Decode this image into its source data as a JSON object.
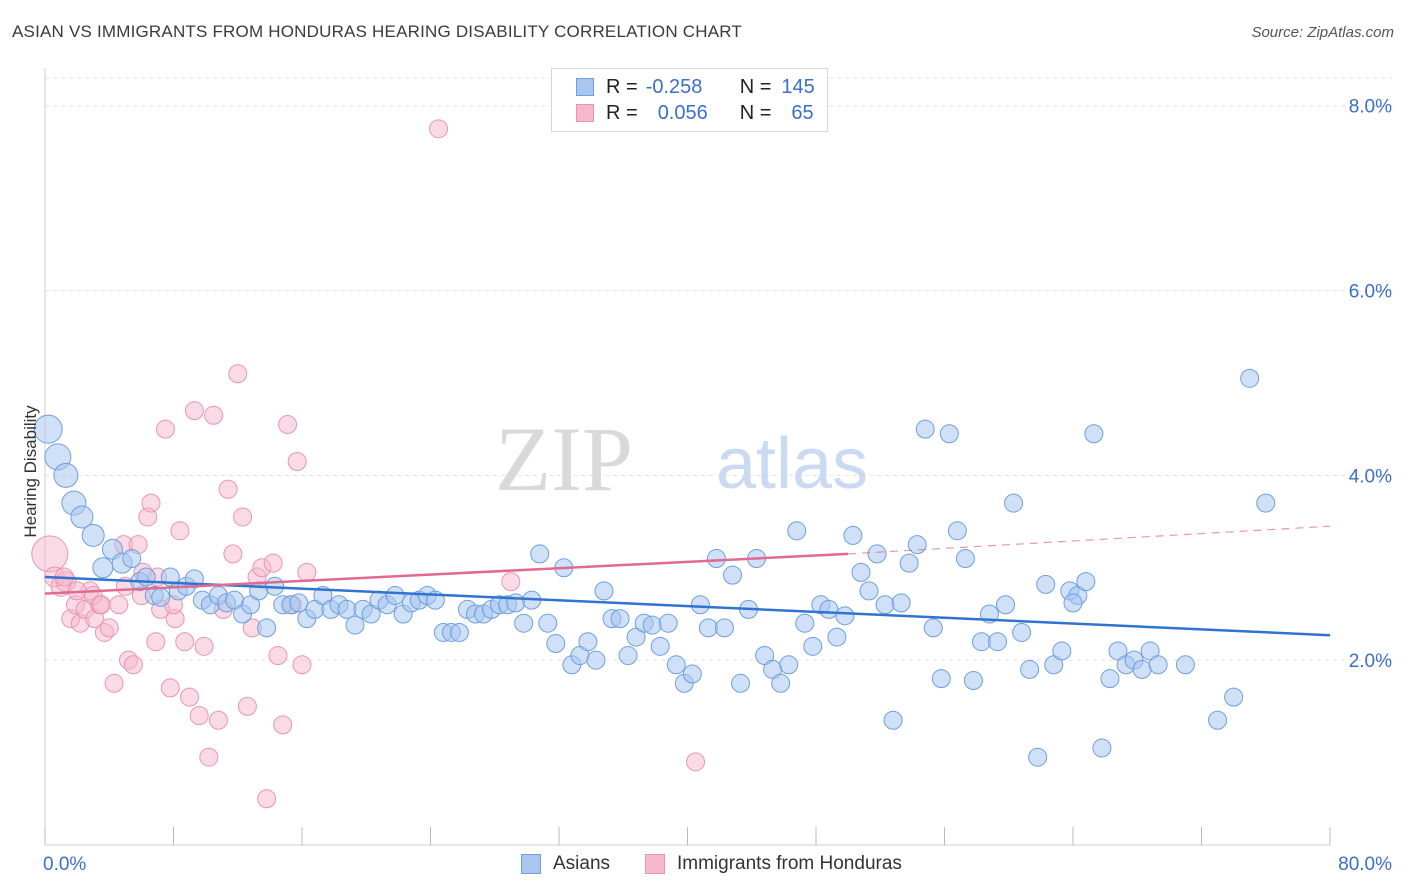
{
  "header": {
    "title": "ASIAN VS IMMIGRANTS FROM HONDURAS HEARING DISABILITY CORRELATION CHART",
    "source": "Source: ZipAtlas.com"
  },
  "legend": {
    "rows": [
      {
        "r_label": "R =",
        "r_value": "-0.258",
        "n_label": "N =",
        "n_value": "145"
      },
      {
        "r_label": "R =",
        "r_value": "0.056",
        "n_label": "N =",
        "n_value": "65"
      }
    ]
  },
  "bottom_legend": {
    "asians": "Asians",
    "honduras": "Immigrants from Honduras"
  },
  "watermark": {
    "zip": "ZIP",
    "atlas": "atlas"
  },
  "colors": {
    "asians_fill": "#a8c6f0",
    "asians_stroke": "#6e9fe0",
    "asians_line": "#2f74d0",
    "honduras_fill": "#f6b8cb",
    "honduras_stroke": "#e995b0",
    "honduras_line": "#e06a93",
    "axis_text": "#3b6fc9",
    "grid": "#e3e3e3"
  },
  "chart_data": {
    "type": "scatter",
    "title": "ASIAN VS IMMIGRANTS FROM HONDURAS HEARING DISABILITY CORRELATION CHART",
    "xlabel": "",
    "ylabel": "Hearing Disability",
    "xlim": [
      0,
      80
    ],
    "ylim": [
      0,
      8.3
    ],
    "x_tick_labels": [
      "0.0%",
      "80.0%"
    ],
    "y_ticks": [
      2,
      4,
      6,
      8
    ],
    "y_tick_labels": [
      "2.0%",
      "4.0%",
      "6.0%",
      "8.0%"
    ],
    "grid": true,
    "legend_position": "top-center",
    "series": [
      {
        "name": "Asians",
        "r": -0.258,
        "n": 145,
        "trend": {
          "x": [
            0,
            80
          ],
          "y": [
            2.9,
            2.27
          ]
        },
        "points": [
          [
            0.2,
            4.5,
            14
          ],
          [
            0.8,
            4.2,
            13
          ],
          [
            1.3,
            4.0,
            12
          ],
          [
            1.8,
            3.7,
            12
          ],
          [
            2.3,
            3.55,
            11
          ],
          [
            3.0,
            3.35,
            11
          ],
          [
            3.6,
            3.0,
            10
          ],
          [
            4.2,
            3.2,
            10
          ],
          [
            4.8,
            3.05,
            10
          ],
          [
            5.4,
            3.1,
            9
          ],
          [
            5.9,
            2.85,
            9
          ],
          [
            6.3,
            2.9,
            9
          ],
          [
            6.8,
            2.7,
            9
          ],
          [
            7.2,
            2.68,
            9
          ],
          [
            7.8,
            2.9,
            9
          ],
          [
            8.3,
            2.75,
            9
          ],
          [
            8.8,
            2.8,
            9
          ],
          [
            9.3,
            2.88,
            9
          ],
          [
            9.8,
            2.65,
            9
          ],
          [
            10.3,
            2.6,
            9
          ],
          [
            10.8,
            2.7,
            9
          ],
          [
            11.3,
            2.62,
            9
          ],
          [
            11.8,
            2.65,
            9
          ],
          [
            12.3,
            2.5,
            9
          ],
          [
            12.8,
            2.6,
            9
          ],
          [
            13.3,
            2.75,
            9
          ],
          [
            13.8,
            2.35,
            9
          ],
          [
            14.3,
            2.8,
            9
          ],
          [
            14.8,
            2.6,
            9
          ],
          [
            15.3,
            2.6,
            9
          ],
          [
            15.8,
            2.62,
            9
          ],
          [
            16.3,
            2.45,
            9
          ],
          [
            16.8,
            2.55,
            9
          ],
          [
            17.3,
            2.7,
            9
          ],
          [
            17.8,
            2.55,
            9
          ],
          [
            18.3,
            2.6,
            9
          ],
          [
            18.8,
            2.55,
            9
          ],
          [
            19.3,
            2.38,
            9
          ],
          [
            19.8,
            2.55,
            9
          ],
          [
            20.3,
            2.5,
            9
          ],
          [
            20.8,
            2.65,
            9
          ],
          [
            21.3,
            2.6,
            9
          ],
          [
            21.8,
            2.7,
            9
          ],
          [
            22.3,
            2.5,
            9
          ],
          [
            22.8,
            2.62,
            9
          ],
          [
            23.3,
            2.65,
            9
          ],
          [
            23.8,
            2.7,
            9
          ],
          [
            24.3,
            2.65,
            9
          ],
          [
            24.8,
            2.3,
            9
          ],
          [
            25.3,
            2.3,
            9
          ],
          [
            25.8,
            2.3,
            9
          ],
          [
            26.3,
            2.55,
            9
          ],
          [
            26.8,
            2.5,
            9
          ],
          [
            27.3,
            2.5,
            9
          ],
          [
            27.8,
            2.55,
            9
          ],
          [
            28.3,
            2.6,
            9
          ],
          [
            28.8,
            2.6,
            9
          ],
          [
            29.3,
            2.62,
            9
          ],
          [
            29.8,
            2.4,
            9
          ],
          [
            30.3,
            2.65,
            9
          ],
          [
            30.8,
            3.15,
            9
          ],
          [
            31.3,
            2.4,
            9
          ],
          [
            31.8,
            2.18,
            9
          ],
          [
            32.3,
            3.0,
            9
          ],
          [
            32.8,
            1.95,
            9
          ],
          [
            33.3,
            2.05,
            9
          ],
          [
            33.8,
            2.2,
            9
          ],
          [
            34.3,
            2.0,
            9
          ],
          [
            34.8,
            2.75,
            9
          ],
          [
            35.3,
            2.45,
            9
          ],
          [
            35.8,
            2.45,
            9
          ],
          [
            36.3,
            2.05,
            9
          ],
          [
            36.8,
            2.25,
            9
          ],
          [
            37.3,
            2.4,
            9
          ],
          [
            37.8,
            2.38,
            9
          ],
          [
            38.3,
            2.15,
            9
          ],
          [
            38.8,
            2.4,
            9
          ],
          [
            39.3,
            1.95,
            9
          ],
          [
            39.8,
            1.75,
            9
          ],
          [
            40.3,
            1.85,
            9
          ],
          [
            40.8,
            2.6,
            9
          ],
          [
            41.3,
            2.35,
            9
          ],
          [
            41.8,
            3.1,
            9
          ],
          [
            42.3,
            2.35,
            9
          ],
          [
            42.8,
            2.92,
            9
          ],
          [
            43.3,
            1.75,
            9
          ],
          [
            43.8,
            2.55,
            9
          ],
          [
            44.3,
            3.1,
            9
          ],
          [
            44.8,
            2.05,
            9
          ],
          [
            45.3,
            1.9,
            9
          ],
          [
            45.8,
            1.75,
            9
          ],
          [
            46.3,
            1.95,
            9
          ],
          [
            46.8,
            3.4,
            9
          ],
          [
            47.3,
            2.4,
            9
          ],
          [
            47.8,
            2.15,
            9
          ],
          [
            48.3,
            2.6,
            9
          ],
          [
            48.8,
            2.55,
            9
          ],
          [
            49.3,
            2.25,
            9
          ],
          [
            49.8,
            2.48,
            9
          ],
          [
            50.3,
            3.35,
            9
          ],
          [
            50.8,
            2.95,
            9
          ],
          [
            51.3,
            2.75,
            9
          ],
          [
            51.8,
            3.15,
            9
          ],
          [
            52.3,
            2.6,
            9
          ],
          [
            52.8,
            1.35,
            9
          ],
          [
            53.3,
            2.62,
            9
          ],
          [
            53.8,
            3.05,
            9
          ],
          [
            54.3,
            3.25,
            9
          ],
          [
            54.8,
            4.5,
            9
          ],
          [
            55.3,
            2.35,
            9
          ],
          [
            55.8,
            1.8,
            9
          ],
          [
            56.3,
            4.45,
            9
          ],
          [
            56.8,
            3.4,
            9
          ],
          [
            57.3,
            3.1,
            9
          ],
          [
            57.8,
            1.78,
            9
          ],
          [
            58.3,
            2.2,
            9
          ],
          [
            58.8,
            2.5,
            9
          ],
          [
            59.3,
            2.2,
            9
          ],
          [
            59.8,
            2.6,
            9
          ],
          [
            60.3,
            3.7,
            9
          ],
          [
            60.8,
            2.3,
            9
          ],
          [
            61.3,
            1.9,
            9
          ],
          [
            61.8,
            0.95,
            9
          ],
          [
            62.3,
            2.82,
            9
          ],
          [
            62.8,
            1.95,
            9
          ],
          [
            63.3,
            2.1,
            9
          ],
          [
            63.8,
            2.75,
            9
          ],
          [
            64.3,
            2.7,
            9
          ],
          [
            64.8,
            2.85,
            9
          ],
          [
            65.3,
            4.45,
            9
          ],
          [
            65.8,
            1.05,
            9
          ],
          [
            66.3,
            1.8,
            9
          ],
          [
            66.8,
            2.1,
            9
          ],
          [
            67.3,
            1.95,
            9
          ],
          [
            67.8,
            2.0,
            9
          ],
          [
            68.3,
            1.9,
            9
          ],
          [
            68.8,
            2.1,
            9
          ],
          [
            69.3,
            1.95,
            9
          ],
          [
            71.0,
            1.95,
            9
          ],
          [
            73.0,
            1.35,
            9
          ],
          [
            74.0,
            1.6,
            9
          ],
          [
            75.0,
            5.05,
            9
          ],
          [
            76.0,
            3.7,
            9
          ],
          [
            64.0,
            2.62,
            9
          ]
        ]
      },
      {
        "name": "Immigrants from Honduras",
        "r": 0.056,
        "n": 65,
        "trend": {
          "x": [
            0,
            50
          ],
          "y": [
            2.72,
            3.15
          ]
        },
        "trend_dashed": {
          "x": [
            50,
            80
          ],
          "y": [
            3.15,
            3.45
          ]
        },
        "points": [
          [
            0.3,
            3.15,
            18
          ],
          [
            0.6,
            2.9,
            10
          ],
          [
            1.0,
            2.8,
            10
          ],
          [
            1.3,
            2.85,
            10
          ],
          [
            1.6,
            2.45,
            9
          ],
          [
            1.9,
            2.6,
            9
          ],
          [
            2.2,
            2.4,
            9
          ],
          [
            2.5,
            2.55,
            9
          ],
          [
            2.8,
            2.75,
            9
          ],
          [
            3.1,
            2.45,
            9
          ],
          [
            3.4,
            2.6,
            9
          ],
          [
            3.7,
            2.3,
            9
          ],
          [
            4.0,
            2.35,
            9
          ],
          [
            4.3,
            1.75,
            9
          ],
          [
            4.6,
            2.6,
            9
          ],
          [
            4.9,
            3.25,
            9
          ],
          [
            5.2,
            2.0,
            9
          ],
          [
            5.5,
            1.95,
            9
          ],
          [
            5.8,
            3.25,
            9
          ],
          [
            6.1,
            2.95,
            9
          ],
          [
            6.4,
            3.55,
            9
          ],
          [
            6.6,
            3.7,
            9
          ],
          [
            6.9,
            2.2,
            9
          ],
          [
            7.2,
            2.55,
            9
          ],
          [
            7.5,
            4.5,
            9
          ],
          [
            7.8,
            1.7,
            9
          ],
          [
            8.1,
            2.45,
            9
          ],
          [
            8.4,
            3.4,
            9
          ],
          [
            8.7,
            2.2,
            9
          ],
          [
            9.0,
            1.6,
            9
          ],
          [
            9.3,
            4.7,
            9
          ],
          [
            9.6,
            1.4,
            9
          ],
          [
            9.9,
            2.15,
            9
          ],
          [
            10.2,
            0.95,
            9
          ],
          [
            10.5,
            4.65,
            9
          ],
          [
            10.8,
            1.35,
            9
          ],
          [
            11.1,
            2.55,
            9
          ],
          [
            11.4,
            3.85,
            9
          ],
          [
            11.7,
            3.15,
            9
          ],
          [
            12.0,
            5.1,
            9
          ],
          [
            12.3,
            3.55,
            9
          ],
          [
            12.6,
            1.5,
            9
          ],
          [
            12.9,
            2.35,
            9
          ],
          [
            13.2,
            2.9,
            9
          ],
          [
            13.5,
            3.0,
            9
          ],
          [
            13.8,
            0.5,
            9
          ],
          [
            14.2,
            3.05,
            9
          ],
          [
            14.5,
            2.05,
            9
          ],
          [
            14.8,
            1.3,
            9
          ],
          [
            15.1,
            4.55,
            9
          ],
          [
            15.4,
            2.6,
            9
          ],
          [
            15.7,
            4.15,
            9
          ],
          [
            16.0,
            1.95,
            9
          ],
          [
            16.3,
            2.95,
            9
          ],
          [
            2.0,
            2.75,
            9
          ],
          [
            3.0,
            2.7,
            9
          ],
          [
            3.5,
            2.6,
            9
          ],
          [
            5.0,
            2.8,
            9
          ],
          [
            6.0,
            2.7,
            9
          ],
          [
            7.0,
            2.9,
            9
          ],
          [
            8.0,
            2.6,
            9
          ],
          [
            24.5,
            7.75,
            9
          ],
          [
            29.0,
            2.85,
            9
          ],
          [
            40.5,
            0.9,
            9
          ],
          [
            1.2,
            2.9,
            9
          ]
        ]
      }
    ]
  }
}
